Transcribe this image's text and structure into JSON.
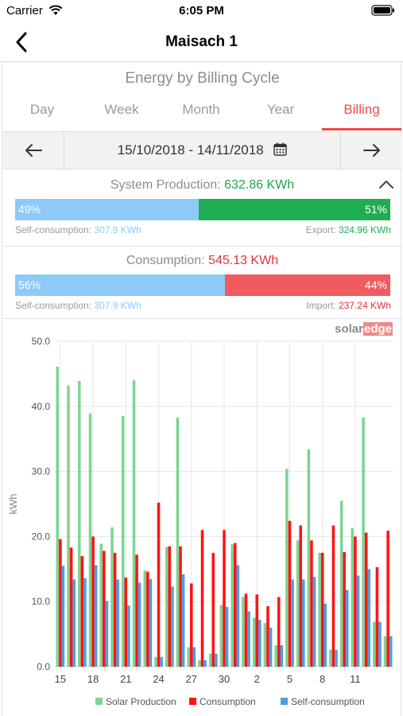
{
  "status_bar": {
    "carrier": "Carrier",
    "time": "6:05 PM"
  },
  "nav": {
    "title": "Maisach 1"
  },
  "section_title": "Energy by Billing Cycle",
  "tabs": [
    {
      "label": "Day"
    },
    {
      "label": "Week"
    },
    {
      "label": "Month"
    },
    {
      "label": "Year"
    },
    {
      "label": "Billing",
      "active": true
    }
  ],
  "date_range": "15/10/2018 - 14/11/2018",
  "production": {
    "label": "System Production:",
    "value": "632.86 KWh",
    "self_percent": "49%",
    "export_percent": "51%",
    "self_fraction": 0.49,
    "self_label": "Self-consumption:",
    "self_value": "307.9 KWh",
    "export_label": "Export:",
    "export_value": "324.96 KWh"
  },
  "consumption": {
    "label": "Consumption:",
    "value": "545.13 KWh",
    "self_percent": "56%",
    "import_percent": "44%",
    "self_fraction": 0.56,
    "self_label": "Self-consumption:",
    "self_value": "307.9 KWh",
    "import_label": "Import:",
    "import_value": "237.24 KWh"
  },
  "brand": {
    "part1": "solar",
    "part2": "edge"
  },
  "colors": {
    "solar": "#7ed493",
    "consumption": "#ff1414",
    "self": "#4a9fe0",
    "accent": "#e94b4b"
  },
  "chart_data": {
    "type": "bar",
    "ylabel": "kWh",
    "ylim": [
      0,
      50
    ],
    "yticks": [
      "0.0",
      "10.0",
      "20.0",
      "30.0",
      "40.0",
      "50.0"
    ],
    "x_tick_labels": [
      "15",
      "18",
      "21",
      "24",
      "27",
      "30",
      "2",
      "5",
      "8",
      "11"
    ],
    "x_tick_every": 3,
    "days": 31,
    "series": [
      {
        "name": "Solar Production",
        "values": [
          46.1,
          43.2,
          43.9,
          38.9,
          18.9,
          21.4,
          38.5,
          44.0,
          14.8,
          1.5,
          18.4,
          38.3,
          3.0,
          1.0,
          2.0,
          9.5,
          18.8,
          10.7,
          7.5,
          6.7,
          3.3,
          30.4,
          19.4,
          33.4,
          17.5,
          2.6,
          25.5,
          21.3,
          38.3,
          6.9,
          4.7
        ]
      },
      {
        "name": "Consumption",
        "values": [
          19.6,
          18.3,
          17.0,
          20.0,
          17.8,
          17.5,
          13.7,
          17.2,
          14.6,
          25.2,
          18.5,
          18.5,
          12.8,
          21.0,
          17.5,
          21.0,
          19.0,
          11.2,
          11.1,
          9.3,
          10.7,
          22.4,
          21.7,
          19.4,
          17.5,
          21.7,
          17.6,
          20.0,
          20.6,
          15.3,
          20.9
        ]
      },
      {
        "name": "Self-consumption",
        "values": [
          15.5,
          13.4,
          13.6,
          15.6,
          10.1,
          13.4,
          9.4,
          12.9,
          13.5,
          1.5,
          12.3,
          14.2,
          3.0,
          1.0,
          2.0,
          9.2,
          15.6,
          8.5,
          7.2,
          6.0,
          3.3,
          13.4,
          13.4,
          13.8,
          9.7,
          2.6,
          11.8,
          14.0,
          15.0,
          6.9,
          4.7
        ]
      }
    ]
  }
}
